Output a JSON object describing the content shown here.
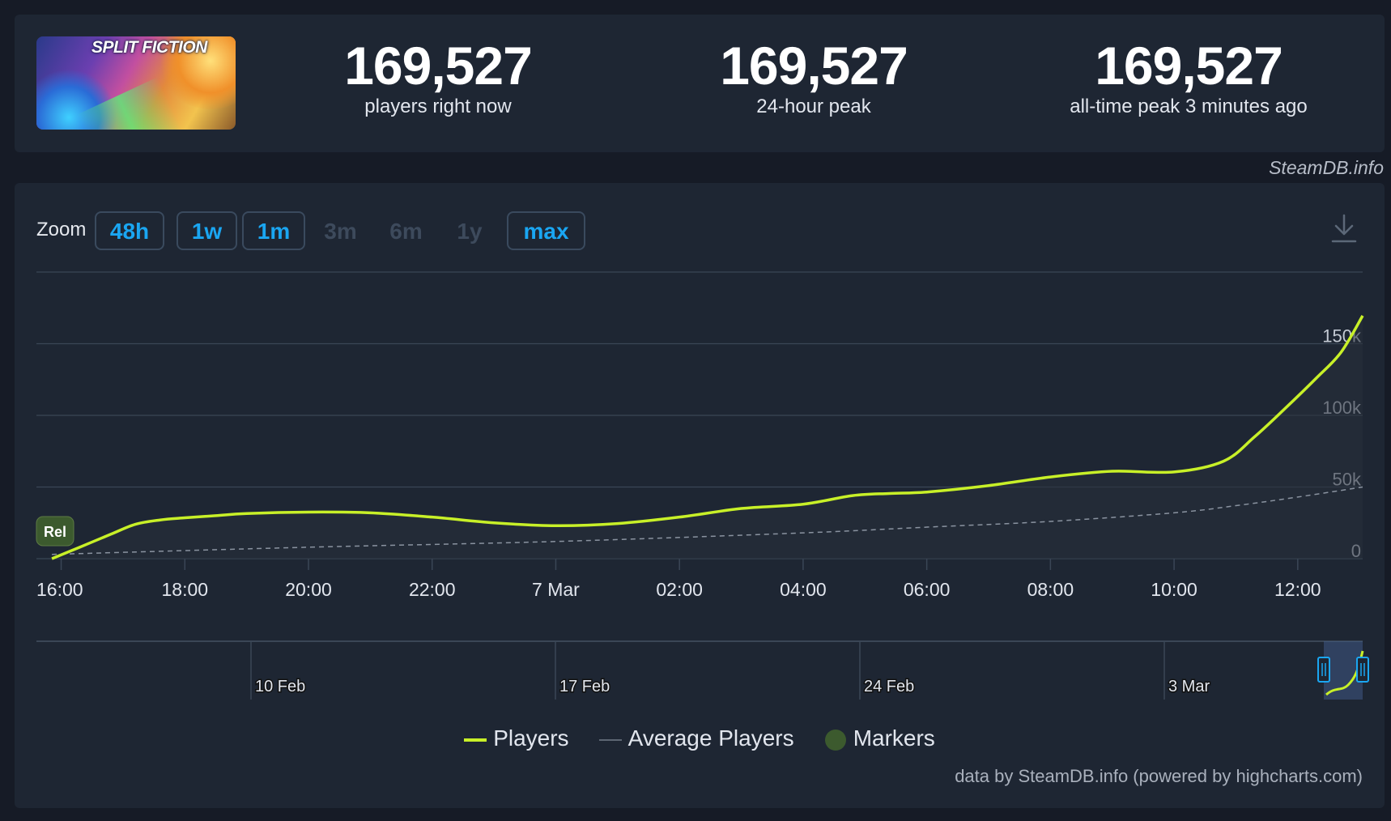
{
  "header": {
    "game_logo_text": "SPLIT FICTION",
    "stats": [
      {
        "value": "169,527",
        "label": "players right now"
      },
      {
        "value": "169,527",
        "label": "24-hour peak"
      },
      {
        "value": "169,527",
        "label": "all-time peak 3 minutes ago"
      }
    ]
  },
  "credit_top": "SteamDB.info",
  "zoom": {
    "label": "Zoom",
    "buttons": [
      {
        "label": "48h",
        "enabled": true
      },
      {
        "label": "1w",
        "enabled": true
      },
      {
        "label": "1m",
        "enabled": true
      },
      {
        "label": "3m",
        "enabled": false
      },
      {
        "label": "6m",
        "enabled": false
      },
      {
        "label": "1y",
        "enabled": false
      },
      {
        "label": "max",
        "enabled": true
      }
    ]
  },
  "colors": {
    "players": "#c8f028",
    "average": "#8a93a0",
    "markers": "#3c5a2e",
    "accent": "#1aa6f2",
    "grid": "#3a4656"
  },
  "chart_data": {
    "type": "line",
    "x_unit": "hours since 6 Mar 16:00",
    "x_ticks": [
      {
        "x": 0,
        "label": "16:00"
      },
      {
        "x": 2,
        "label": "18:00"
      },
      {
        "x": 4,
        "label": "20:00"
      },
      {
        "x": 6,
        "label": "22:00"
      },
      {
        "x": 8,
        "label": "7 Mar"
      },
      {
        "x": 10,
        "label": "02:00"
      },
      {
        "x": 12,
        "label": "04:00"
      },
      {
        "x": 14,
        "label": "06:00"
      },
      {
        "x": 16,
        "label": "08:00"
      },
      {
        "x": 18,
        "label": "10:00"
      },
      {
        "x": 20,
        "label": "12:00"
      }
    ],
    "y_ticks": [
      {
        "y": 0,
        "label": "0"
      },
      {
        "y": 50000,
        "label": "50k"
      },
      {
        "y": 100000,
        "label": "100k"
      },
      {
        "y": 150000,
        "label": "150k"
      }
    ],
    "xlim": [
      -0.4,
      21.05
    ],
    "ylim": [
      0,
      200000
    ],
    "grid": true,
    "series": [
      {
        "name": "Players",
        "x": [
          -0.15,
          0.3,
          0.8,
          1.2,
          1.6,
          2.0,
          2.5,
          3.0,
          4.0,
          5.0,
          6.0,
          7.0,
          8.0,
          9.0,
          10.0,
          11.0,
          12.0,
          12.8,
          13.4,
          14.0,
          15.0,
          16.0,
          17.0,
          18.0,
          18.8,
          19.3,
          19.8,
          20.3,
          20.7,
          21.05
        ],
        "y": [
          0,
          8000,
          17000,
          24000,
          27000,
          28500,
          30000,
          31500,
          32500,
          32000,
          29000,
          25000,
          23000,
          24500,
          29000,
          35000,
          38000,
          44000,
          45500,
          46500,
          51000,
          57000,
          61000,
          60500,
          68000,
          85000,
          105000,
          126000,
          144000,
          169527
        ]
      },
      {
        "name": "Average Players",
        "x": [
          -0.15,
          4.0,
          8.0,
          12.0,
          14.0,
          16.0,
          18.0,
          19.0,
          20.0,
          21.05
        ],
        "y": [
          3000,
          8000,
          12000,
          18000,
          22000,
          26000,
          32000,
          37000,
          43000,
          50000
        ]
      }
    ],
    "markers": [
      {
        "x": -0.4,
        "label": "Rel"
      }
    ],
    "navigator": {
      "labels": [
        "10 Feb",
        "17 Feb",
        "24 Feb",
        "3 Mar"
      ]
    },
    "legend": [
      "Players",
      "Average Players",
      "Markers"
    ],
    "legend_position": "bottom-center"
  },
  "credit_bottom": "data by SteamDB.info (powered by highcharts.com)"
}
